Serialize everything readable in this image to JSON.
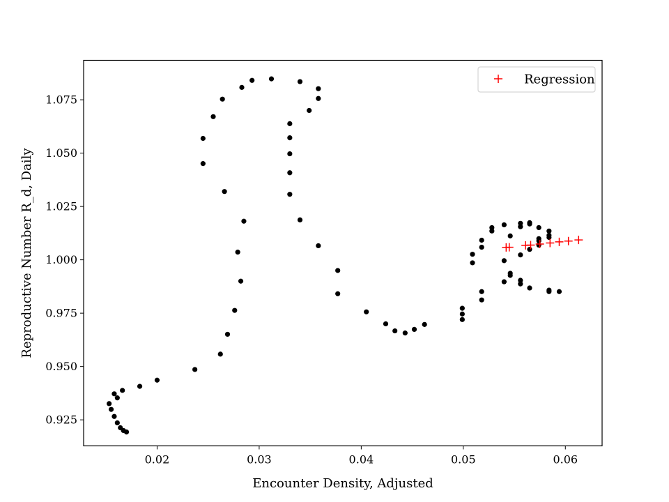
{
  "chart_data": {
    "type": "scatter",
    "title": "",
    "xlabel": "Encounter Density, Adjusted",
    "ylabel": "Reproductive Number R_d, Daily",
    "xlim": [
      0.0128,
      0.0636
    ],
    "ylim": [
      0.9128,
      1.0935
    ],
    "xticks": [
      0.02,
      0.03,
      0.04,
      0.05,
      0.06
    ],
    "xtick_labels": [
      "0.02",
      "0.03",
      "0.04",
      "0.05",
      "0.06"
    ],
    "yticks": [
      0.925,
      0.95,
      0.975,
      1.0,
      1.025,
      1.05,
      1.075
    ],
    "ytick_labels": [
      "0.925",
      "0.950",
      "0.975",
      "1.000",
      "1.025",
      "1.050",
      "1.075"
    ],
    "grid": false,
    "legend": {
      "placement": "top-right",
      "entries": [
        "Regression"
      ]
    },
    "series": [
      {
        "color": "#000000",
        "marker": "dot",
        "points": [
          [
            0.017,
            0.9193
          ],
          [
            0.0167,
            0.92
          ],
          [
            0.0164,
            0.9213
          ],
          [
            0.0161,
            0.9236
          ],
          [
            0.0158,
            0.9266
          ],
          [
            0.0155,
            0.9299
          ],
          [
            0.0153,
            0.9326
          ],
          [
            0.0158,
            0.9372
          ],
          [
            0.0161,
            0.9353
          ],
          [
            0.0166,
            0.9388
          ],
          [
            0.0183,
            0.9407
          ],
          [
            0.02,
            0.9436
          ],
          [
            0.0237,
            0.9486
          ],
          [
            0.0262,
            0.9558
          ],
          [
            0.0269,
            0.9651
          ],
          [
            0.0276,
            0.9763
          ],
          [
            0.0282,
            0.99
          ],
          [
            0.0279,
            1.0036
          ],
          [
            0.0285,
            1.0181
          ],
          [
            0.0266,
            1.032
          ],
          [
            0.0245,
            1.0451
          ],
          [
            0.0245,
            1.0569
          ],
          [
            0.0255,
            1.0671
          ],
          [
            0.0264,
            1.0753
          ],
          [
            0.0283,
            1.0808
          ],
          [
            0.0293,
            1.0841
          ],
          [
            0.0312,
            1.0848
          ],
          [
            0.034,
            1.0835
          ],
          [
            0.0358,
            1.0802
          ],
          [
            0.0358,
            1.0756
          ],
          [
            0.0349,
            1.07
          ],
          [
            0.033,
            1.0638
          ],
          [
            0.033,
            1.0572
          ],
          [
            0.033,
            1.0497
          ],
          [
            0.033,
            1.0408
          ],
          [
            0.033,
            1.0307
          ],
          [
            0.034,
            1.0187
          ],
          [
            0.0358,
            1.0066
          ],
          [
            0.0377,
            0.995
          ],
          [
            0.0377,
            0.9841
          ],
          [
            0.0405,
            0.9756
          ],
          [
            0.0424,
            0.97
          ],
          [
            0.0433,
            0.9667
          ],
          [
            0.0443,
            0.9657
          ],
          [
            0.0452,
            0.9674
          ],
          [
            0.0462,
            0.9697
          ],
          [
            0.0499,
            0.972
          ],
          [
            0.0499,
            0.9746
          ],
          [
            0.0499,
            0.9773
          ],
          [
            0.0518,
            0.9812
          ],
          [
            0.0518,
            0.9851
          ],
          [
            0.054,
            0.9897
          ],
          [
            0.0546,
            0.9927
          ],
          [
            0.0546,
            0.9937
          ],
          [
            0.0556,
            0.9887
          ],
          [
            0.0556,
            0.9904
          ],
          [
            0.0565,
            0.9868
          ],
          [
            0.0584,
            0.9858
          ],
          [
            0.0584,
            0.9851
          ],
          [
            0.0594,
            0.9851
          ],
          [
            0.0509,
            0.9986
          ],
          [
            0.0509,
            1.0026
          ],
          [
            0.0518,
            1.0059
          ],
          [
            0.0518,
            1.0092
          ],
          [
            0.0528,
            1.0135
          ],
          [
            0.0528,
            1.0151
          ],
          [
            0.054,
            1.0164
          ],
          [
            0.054,
            0.9996
          ],
          [
            0.0546,
            1.0112
          ],
          [
            0.0556,
            1.0171
          ],
          [
            0.0556,
            1.0155
          ],
          [
            0.0556,
            1.0023
          ],
          [
            0.0565,
            1.0174
          ],
          [
            0.0565,
            1.0168
          ],
          [
            0.0565,
            1.0049
          ],
          [
            0.0574,
            1.0151
          ],
          [
            0.0574,
            1.0099
          ],
          [
            0.0574,
            1.0089
          ],
          [
            0.0574,
            1.0069
          ],
          [
            0.0584,
            1.0135
          ],
          [
            0.0584,
            1.0115
          ],
          [
            0.0584,
            1.0105
          ]
        ]
      },
      {
        "name": "Regression",
        "color": "#ff0000",
        "marker": "plus",
        "points": [
          [
            0.0542,
            1.0058
          ],
          [
            0.0545,
            1.0059
          ],
          [
            0.0561,
            1.0068
          ],
          [
            0.0566,
            1.0069
          ],
          [
            0.0575,
            1.0074
          ],
          [
            0.0585,
            1.0079
          ],
          [
            0.0594,
            1.0084
          ],
          [
            0.0603,
            1.0088
          ],
          [
            0.0613,
            1.0093
          ]
        ]
      }
    ]
  }
}
